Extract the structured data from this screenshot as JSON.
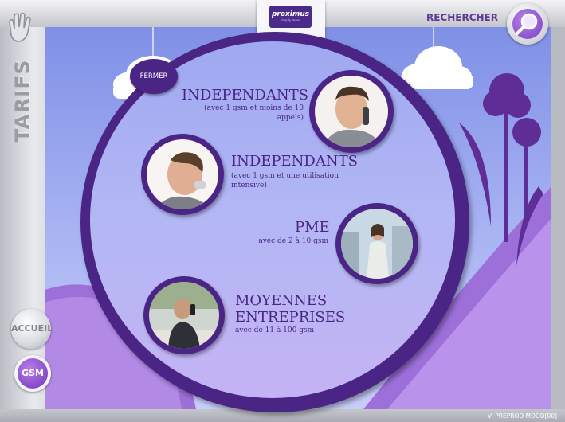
{
  "section": {
    "label": "TARIFS"
  },
  "header": {
    "search_label": "RECHERCHER"
  },
  "logo": {
    "brand": "proximus",
    "tagline": "simply more"
  },
  "panel": {
    "close_label": "FERMER"
  },
  "offers": [
    {
      "title": "INDEPENDANTS",
      "subtitle": "(avec 1 gsm et moins de 10 appels)",
      "photo": "man-on-phone-smiling"
    },
    {
      "title": "INDEPENDANTS",
      "subtitle": "(avec 1 gsm et une utilisation intensive)",
      "photo": "man-on-phone-talking"
    },
    {
      "title": "PME",
      "subtitle": "avec de 2 à 10 gsm",
      "photo": "woman-on-phone-city"
    },
    {
      "title": "MOYENNES ENTREPRISES",
      "subtitle": "avec de 11 à 100 gsm",
      "photo": "man-at-desk-on-phone"
    }
  ],
  "sidebar": {
    "home_label": "ACCUEIL",
    "gsm_label": "GSM"
  },
  "footer": {
    "version": "V: PREPROD MOOD[00]"
  },
  "colors": {
    "accent": "#4a2585",
    "sky": "#8e9cec",
    "purple_hill": "#9c6fd9"
  }
}
